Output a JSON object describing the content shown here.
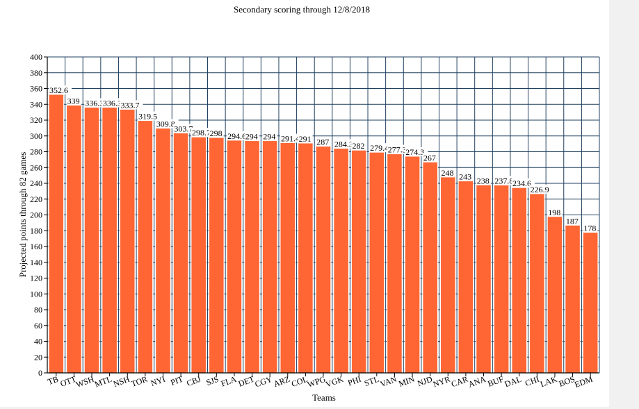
{
  "chart_data": {
    "type": "bar",
    "title": "Secondary scoring through 12/8/2018",
    "xlabel": "Teams",
    "ylabel": "Projected points through 82 games",
    "ylim": [
      0,
      400
    ],
    "ytick_step": 20,
    "grid": true,
    "legend": "none",
    "bar_color": "#ff6633",
    "bar_stroke": "#ffffff",
    "grid_color": "#1f3f5f",
    "categories": [
      "TB",
      "OTT",
      "WSH",
      "MTL",
      "NSH",
      "TOR",
      "NYI",
      "PIT",
      "CBJ",
      "SJS",
      "FLA",
      "DET",
      "CGY",
      "ARZ",
      "COL",
      "WPG",
      "VGK",
      "PHI",
      "STL",
      "VAN",
      "MIN",
      "NJD",
      "NYR",
      "CAR",
      "ANA",
      "BUF",
      "DAL",
      "CHI",
      "LAK",
      "BOS",
      "EDM"
    ],
    "values": [
      352.6,
      339,
      336.3,
      336.3,
      333.7,
      319.5,
      309.8,
      303.7,
      298.7,
      298,
      294.6,
      294,
      294,
      291.4,
      291,
      287,
      284.3,
      282,
      279.4,
      277.3,
      274.3,
      267,
      248,
      243,
      238,
      237.8,
      234.6,
      226.9,
      198,
      187,
      178
    ],
    "value_labels": [
      "352.6",
      "339",
      "336.3",
      "336.3",
      "333.7",
      "319.5",
      "309.8",
      "303.7",
      "298.7",
      "298",
      "294.6",
      "294",
      "294",
      "291.4",
      "291",
      "287",
      "284.3",
      "282",
      "279.4",
      "277.3",
      "274.3",
      "267",
      "248",
      "243",
      "238",
      "237.8",
      "234.6",
      "226.9",
      "198",
      "187",
      "178"
    ]
  }
}
